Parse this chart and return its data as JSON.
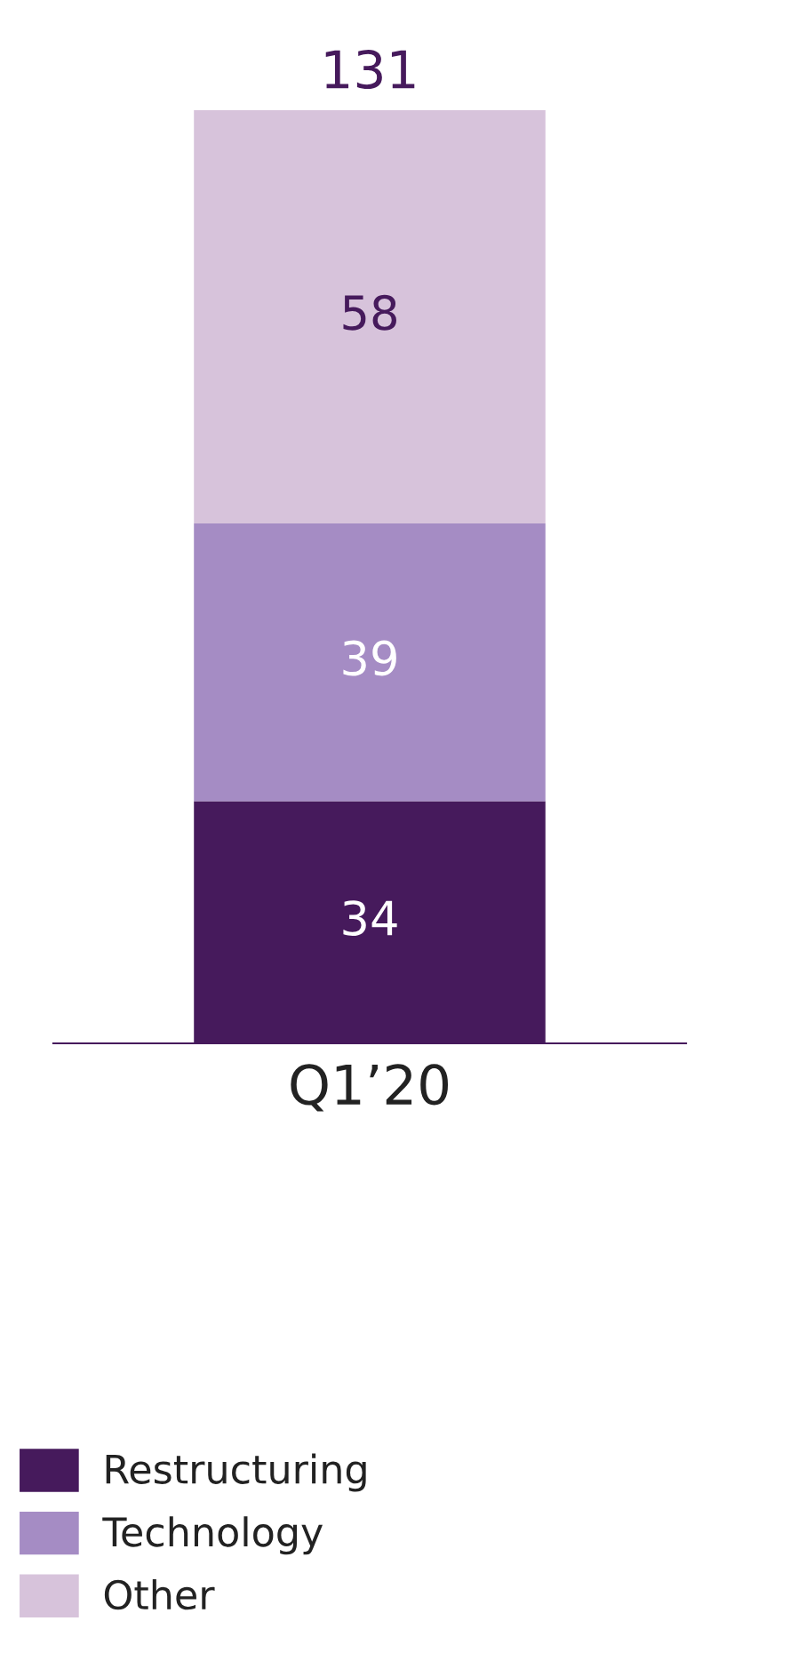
{
  "chart_data": {
    "type": "bar",
    "stacked": true,
    "categories": [
      "Q1’20"
    ],
    "series": [
      {
        "name": "Restructuring",
        "color": "#461a5c",
        "values": [
          34
        ]
      },
      {
        "name": "Technology",
        "color": "#a58cc4",
        "values": [
          39
        ]
      },
      {
        "name": "Other",
        "color": "#d7c3db",
        "values": [
          58
        ]
      }
    ],
    "data_labels": true,
    "totals": [
      "131"
    ],
    "legend": "bottom left",
    "grid": false,
    "tick_labels": "x"
  }
}
